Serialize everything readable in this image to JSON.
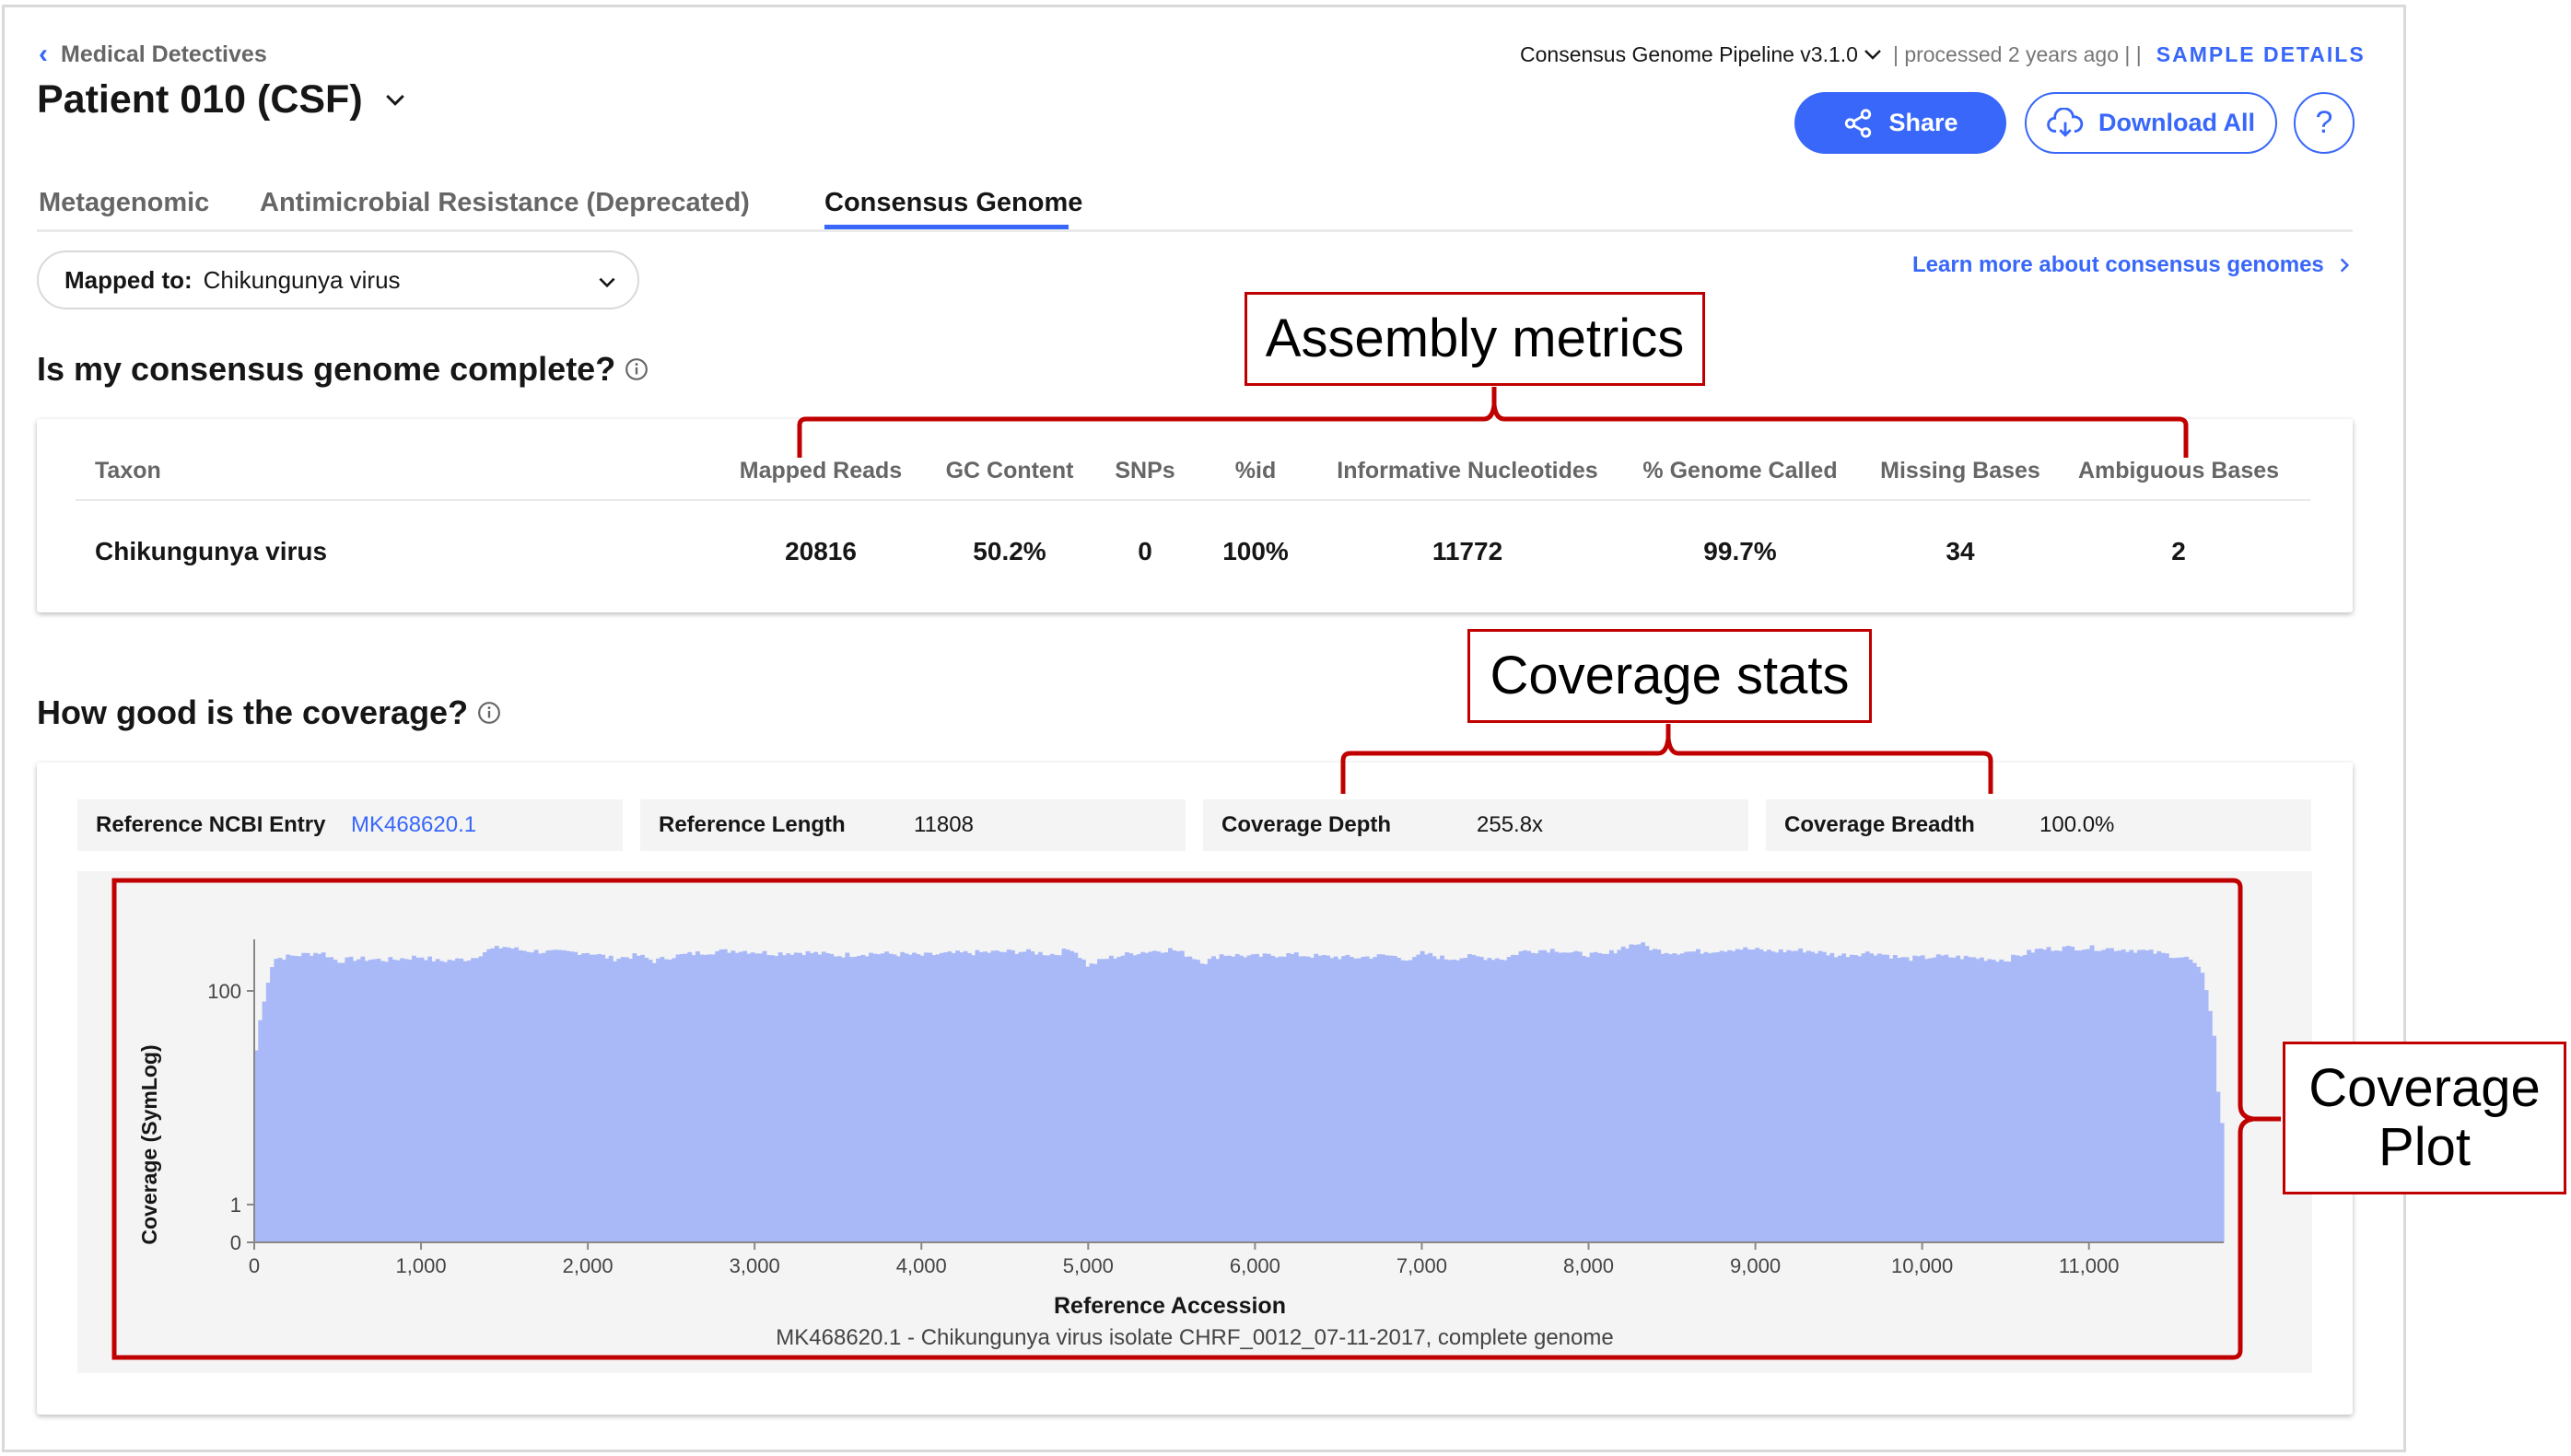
{
  "header": {
    "back_label": "Medical Detectives",
    "title": "Patient 010 (CSF)",
    "pipeline": "Consensus Genome Pipeline v3.1.0",
    "processed": "| processed 2 years ago | |",
    "sample_details": "SAMPLE DETAILS",
    "share_label": "Share",
    "download_label": "Download All",
    "help_label": "?"
  },
  "tabs": [
    {
      "label": "Metagenomic",
      "active": false
    },
    {
      "label": "Antimicrobial Resistance (Deprecated)",
      "active": false
    },
    {
      "label": "Consensus Genome",
      "active": true
    }
  ],
  "mapped": {
    "label": "Mapped to:",
    "value": "Chikungunya virus"
  },
  "learn_more": "Learn more about consensus genomes",
  "completeness": {
    "title": "Is my consensus genome complete?",
    "columns": [
      "Taxon",
      "Mapped Reads",
      "GC Content",
      "SNPs",
      "%id",
      "Informative Nucleotides",
      "% Genome Called",
      "Missing Bases",
      "Ambiguous Bases"
    ],
    "row": [
      "Chikungunya virus",
      "20816",
      "50.2%",
      "0",
      "100%",
      "11772",
      "99.7%",
      "34",
      "2"
    ]
  },
  "coverage": {
    "title": "How good is the coverage?",
    "stats": [
      {
        "key": "Reference NCBI Entry",
        "value": "MK468620.1"
      },
      {
        "key": "Reference Length",
        "value": "11808"
      },
      {
        "key": "Coverage Depth",
        "value": "255.8x"
      },
      {
        "key": "Coverage Breadth",
        "value": "100.0%"
      }
    ]
  },
  "chart_data": {
    "type": "bar",
    "ylabel": "Coverage (SymLog)",
    "xlabel": "Reference Accession",
    "subtitle": "MK468620.1 - Chikungunya virus isolate CHRF_0012_07-11-2017, complete genome",
    "x_ticks": [
      "0",
      "1,000",
      "2,000",
      "3,000",
      "4,000",
      "5,000",
      "6,000",
      "7,000",
      "8,000",
      "9,000",
      "10,000",
      "11,000"
    ],
    "x_tick_values": [
      0,
      1000,
      2000,
      3000,
      4000,
      5000,
      6000,
      7000,
      8000,
      9000,
      10000,
      11000
    ],
    "y_ticks": [
      "0",
      "1",
      "100"
    ],
    "y_tick_values": [
      0,
      1,
      100
    ],
    "xlim": [
      0,
      11808
    ],
    "y_scale": "symlog",
    "bar_color": "#a9b9f8",
    "profile": [
      [
        0,
        15
      ],
      [
        60,
        80
      ],
      [
        120,
        200
      ],
      [
        250,
        215
      ],
      [
        400,
        230
      ],
      [
        500,
        190
      ],
      [
        600,
        200
      ],
      [
        800,
        195
      ],
      [
        1000,
        210
      ],
      [
        1100,
        190
      ],
      [
        1300,
        200
      ],
      [
        1400,
        240
      ],
      [
        1500,
        260
      ],
      [
        1600,
        240
      ],
      [
        1800,
        230
      ],
      [
        2000,
        230
      ],
      [
        2150,
        200
      ],
      [
        2300,
        215
      ],
      [
        2400,
        190
      ],
      [
        2500,
        210
      ],
      [
        2700,
        230
      ],
      [
        2900,
        240
      ],
      [
        3100,
        225
      ],
      [
        3300,
        230
      ],
      [
        3500,
        215
      ],
      [
        3700,
        225
      ],
      [
        3900,
        220
      ],
      [
        4000,
        215
      ],
      [
        4200,
        225
      ],
      [
        4400,
        230
      ],
      [
        4600,
        235
      ],
      [
        4800,
        220
      ],
      [
        4900,
        250
      ],
      [
        5000,
        170
      ],
      [
        5100,
        200
      ],
      [
        5300,
        230
      ],
      [
        5500,
        245
      ],
      [
        5600,
        215
      ],
      [
        5700,
        185
      ],
      [
        5800,
        220
      ],
      [
        6000,
        210
      ],
      [
        6200,
        220
      ],
      [
        6400,
        210
      ],
      [
        6600,
        205
      ],
      [
        6800,
        215
      ],
      [
        6950,
        195
      ],
      [
        7000,
        225
      ],
      [
        7150,
        200
      ],
      [
        7300,
        210
      ],
      [
        7500,
        200
      ],
      [
        7600,
        235
      ],
      [
        7800,
        245
      ],
      [
        7900,
        225
      ],
      [
        8100,
        215
      ],
      [
        8200,
        255
      ],
      [
        8300,
        280
      ],
      [
        8400,
        240
      ],
      [
        8500,
        230
      ],
      [
        8700,
        235
      ],
      [
        8900,
        250
      ],
      [
        9100,
        235
      ],
      [
        9300,
        240
      ],
      [
        9500,
        215
      ],
      [
        9700,
        230
      ],
      [
        9900,
        200
      ],
      [
        10100,
        210
      ],
      [
        10300,
        205
      ],
      [
        10500,
        195
      ],
      [
        10700,
        245
      ],
      [
        10900,
        255
      ],
      [
        11100,
        250
      ],
      [
        11300,
        240
      ],
      [
        11500,
        215
      ],
      [
        11600,
        200
      ],
      [
        11680,
        140
      ],
      [
        11730,
        60
      ],
      [
        11770,
        12
      ],
      [
        11808,
        3
      ]
    ]
  },
  "annotations": {
    "assembly": "Assembly metrics",
    "coverage_stats": "Coverage stats",
    "coverage_plot": "Coverage Plot"
  },
  "colors": {
    "accent": "#3867fa",
    "annotation": "#c00000"
  }
}
